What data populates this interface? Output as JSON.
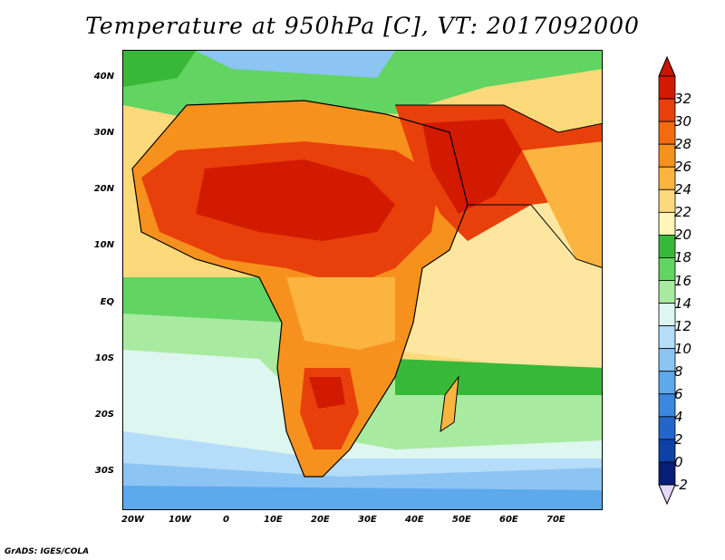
{
  "title": "Temperature at 950hPa [C], VT: 2017092000",
  "credit": "GrADS: IGES/COLA",
  "map": {
    "lon_labels": [
      "20W",
      "10W",
      "0",
      "10E",
      "20E",
      "30E",
      "40E",
      "50E",
      "60E",
      "70E"
    ],
    "lat_labels": [
      "40N",
      "30N",
      "20N",
      "10N",
      "EQ",
      "10S",
      "20S",
      "30S"
    ],
    "lon_range": [
      -22,
      80
    ],
    "lat_range": [
      -37,
      45
    ]
  },
  "colorbar": {
    "labels": [
      "32",
      "30",
      "28",
      "26",
      "24",
      "22",
      "20",
      "18",
      "16",
      "14",
      "12",
      "10",
      "8",
      "6",
      "4",
      "2",
      "0",
      "-2"
    ],
    "colors": [
      "#d21a00",
      "#e8400a",
      "#f26b0f",
      "#f7911d",
      "#fbb440",
      "#fcd97a",
      "#fff5b8",
      "#38b838",
      "#62d462",
      "#a8eaa0",
      "#ddf6f0",
      "#b5dcf8",
      "#8cc4f4",
      "#5ea8ec",
      "#3a88e0",
      "#2166c8",
      "#0c42a8",
      "#081c78"
    ],
    "over_color": "#c81400",
    "under_color": "#e6d8ff"
  }
}
